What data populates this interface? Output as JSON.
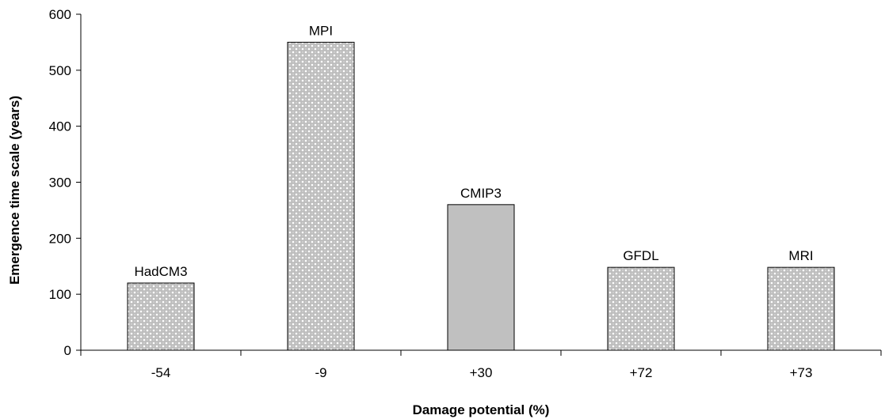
{
  "chart_data": {
    "type": "bar",
    "categories": [
      "-54",
      "-9",
      "+30",
      "+72",
      "+73"
    ],
    "bar_labels": [
      "HadCM3",
      "MPI",
      "CMIP3",
      "GFDL",
      "MRI"
    ],
    "values": [
      120,
      550,
      260,
      148,
      148
    ],
    "bar_styles": [
      "dotted",
      "dotted",
      "solid",
      "dotted",
      "dotted"
    ],
    "xlabel": "Damage potential (%)",
    "ylabel": "Emergence time scale (years)",
    "ylim": [
      0,
      600
    ],
    "yticks": [
      0,
      100,
      200,
      300,
      400,
      500,
      600
    ],
    "grid": false,
    "colors": {
      "solid_fill": "#c0c0c0",
      "dotted_fill": "#bdbdbd",
      "dot_color": "#ffffff",
      "stroke": "#000000"
    }
  }
}
